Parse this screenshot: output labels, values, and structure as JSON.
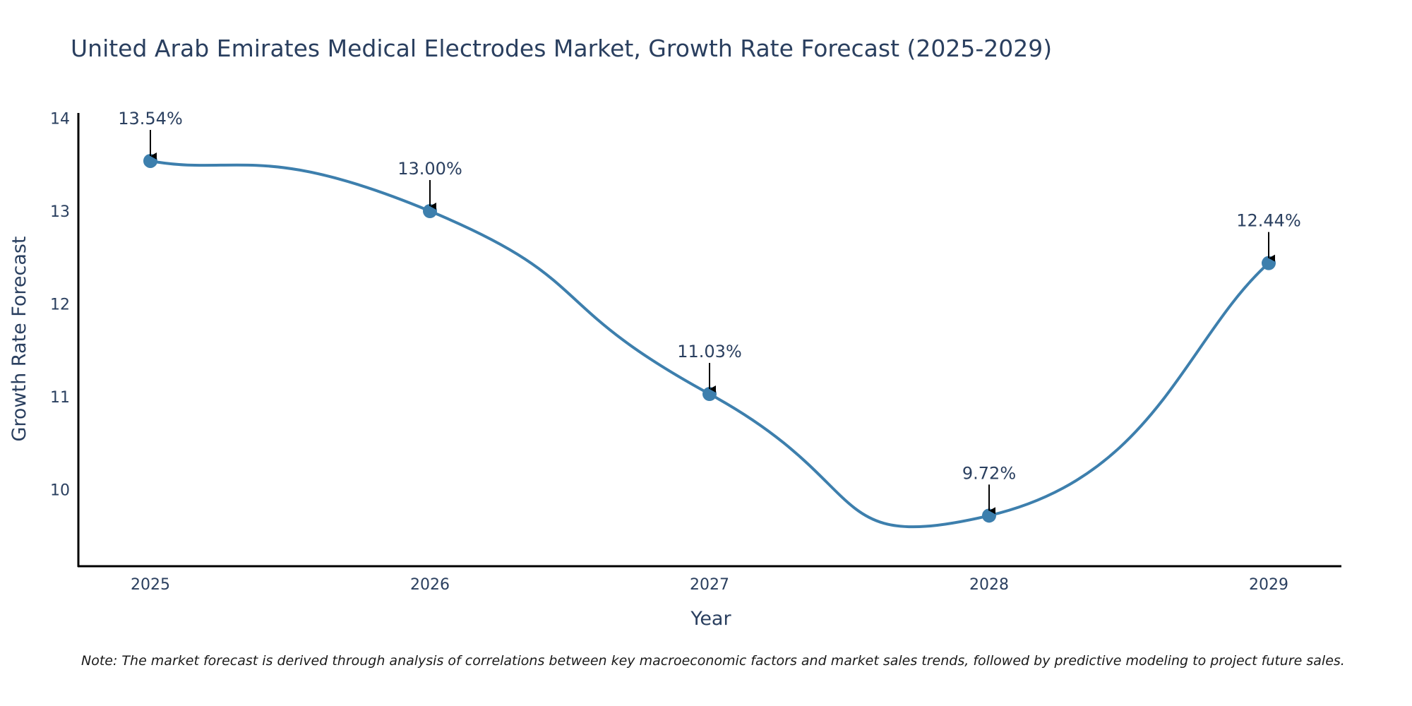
{
  "chart_data": {
    "type": "line",
    "title": "United Arab Emirates Medical Electrodes Market, Growth Rate Forecast (2025-2029)",
    "xlabel": "Year",
    "ylabel": "Growth Rate Forecast",
    "categories": [
      "2025",
      "2026",
      "2027",
      "2028",
      "2029"
    ],
    "values": [
      13.54,
      13.0,
      11.03,
      9.72,
      12.44
    ],
    "data_labels": [
      "13.54%",
      "13.00%",
      "11.03%",
      "9.72%",
      "12.44%"
    ],
    "y_ticks": [
      10,
      11,
      12,
      13,
      14
    ],
    "y_tick_labels": [
      "10",
      "11",
      "12",
      "13",
      "14"
    ],
    "ylim": [
      9.2,
      14.05
    ],
    "line_color": "#3d7fad",
    "marker_color": "#3d7fad",
    "grid": false,
    "note": "Note: The market forecast is derived through analysis of correlations between key macroeconomic factors and market sales trends, followed by predictive modeling to project future sales."
  }
}
